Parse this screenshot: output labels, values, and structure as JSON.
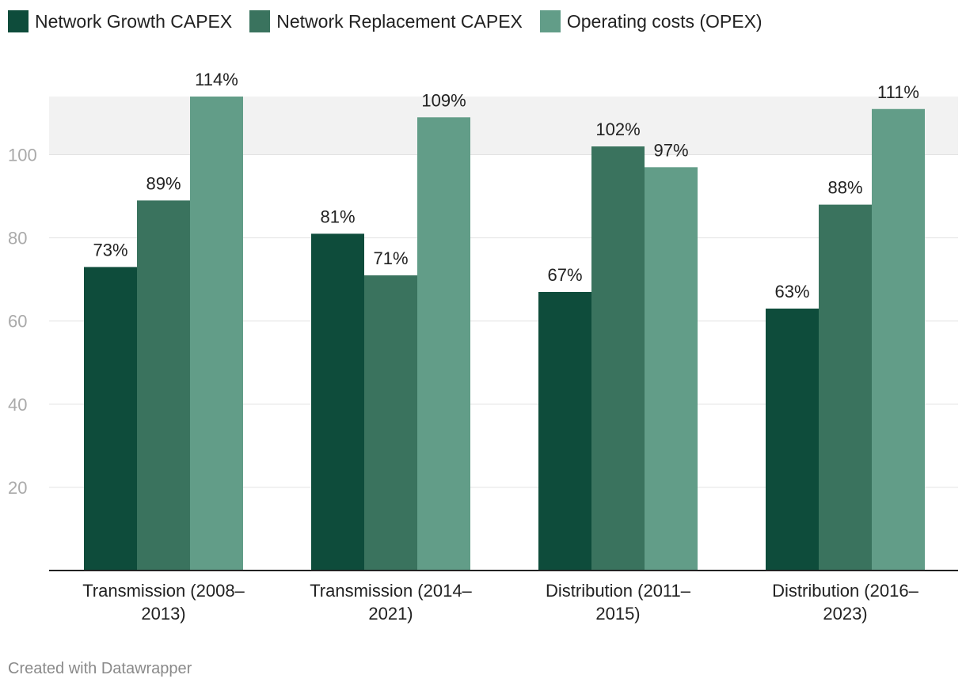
{
  "legend": [
    {
      "label": "Network Growth CAPEX",
      "color": "#0e4c3b"
    },
    {
      "label": "Network Replacement CAPEX",
      "color": "#3a735e"
    },
    {
      "label": "Operating costs (OPEX)",
      "color": "#629d88"
    }
  ],
  "chart_data": {
    "type": "bar",
    "title": "",
    "xlabel": "",
    "ylabel": "",
    "ylim": [
      0,
      114
    ],
    "yticks": [
      20,
      40,
      60,
      80,
      100
    ],
    "highlight_range": [
      100,
      114
    ],
    "categories": [
      [
        "Transmission (2008–",
        "2013)"
      ],
      [
        "Transmission (2014–",
        "2021)"
      ],
      [
        "Distribution (2011–",
        "2015)"
      ],
      [
        "Distribution (2016–",
        "2023)"
      ]
    ],
    "series": [
      {
        "name": "Network Growth CAPEX",
        "color": "#0e4c3b",
        "values": [
          73,
          81,
          67,
          63
        ],
        "labels": [
          "73%",
          "81%",
          "67%",
          "63%"
        ]
      },
      {
        "name": "Network Replacement CAPEX",
        "color": "#3a735e",
        "values": [
          89,
          71,
          102,
          88
        ],
        "labels": [
          "89%",
          "71%",
          "102%",
          "88%"
        ]
      },
      {
        "name": "Operating costs (OPEX)",
        "color": "#629d88",
        "values": [
          114,
          109,
          97,
          111
        ],
        "labels": [
          "114%",
          "109%",
          "97%",
          "111%"
        ]
      }
    ]
  },
  "footer": {
    "credit": "Created with Datawrapper"
  }
}
